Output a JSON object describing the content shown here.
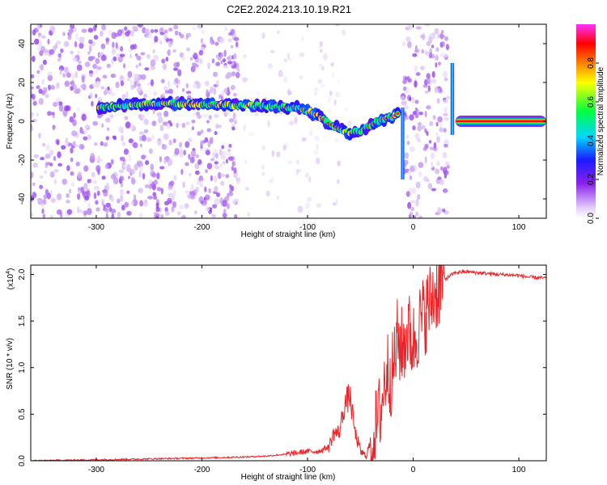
{
  "title": "C2E2.2024.213.10.19.R21",
  "colors": {
    "axis": "#000000",
    "snr_line": "#e8262a",
    "colormap": [
      "#ffffff",
      "#c8a0f0",
      "#7a10f0",
      "#1a1aff",
      "#00d8ff",
      "#00ff40",
      "#ffff00",
      "#ff8000",
      "#ff0000",
      "#ff20ff"
    ]
  },
  "chart_data": [
    {
      "type": "heatmap",
      "title": "C2E2.2024.213.10.19.R21",
      "xlabel": "Height of straight line (km)",
      "ylabel": "Frequency (Hz)",
      "xlim": [
        -362,
        126
      ],
      "ylim": [
        -50,
        50
      ],
      "xticks": [
        -300,
        -200,
        -100,
        0,
        100
      ],
      "yticks": [
        -40,
        -20,
        0,
        20,
        40
      ],
      "colorbar": {
        "label": "Normalized spectral amplitude",
        "range": [
          0.0,
          1.0
        ],
        "ticks": [
          0.0,
          0.2,
          0.4,
          0.6,
          0.8
        ]
      },
      "ridge": {
        "x": [
          -297,
          -280,
          -260,
          -250,
          -230,
          -210,
          -190,
          -170,
          -150,
          -130,
          -110,
          -100,
          -90,
          -80,
          -70,
          -60,
          -50,
          -40,
          -30,
          -20,
          -12
        ],
        "y": [
          7,
          8,
          8.5,
          9,
          9,
          9,
          8.5,
          8.5,
          8,
          7.5,
          7,
          5,
          3,
          -1,
          -4,
          -6,
          -5,
          -2,
          1,
          2,
          5
        ]
      },
      "occultation_top_line": {
        "x": [
          40,
          126
        ],
        "y": [
          0,
          0
        ],
        "amplitude": 1.0
      },
      "noise_regions": [
        {
          "x": [
            -362,
            -165
          ],
          "density": "high"
        },
        {
          "x": [
            -160,
            -60
          ],
          "density": "low"
        },
        {
          "x": [
            -10,
            33
          ],
          "density": "high"
        }
      ]
    },
    {
      "type": "line",
      "xlabel": "Height of straight line (km)",
      "ylabel": "SNR (10 * v/v)",
      "yscale_label": "(x10",
      "yscale_exp": "4",
      "yscale_close": ")",
      "xlim": [
        -362,
        126
      ],
      "ylim": [
        0.0,
        2.1
      ],
      "xticks": [
        -300,
        -200,
        -100,
        0,
        100
      ],
      "yticks": [
        "0.0",
        "0.5",
        "1.0",
        "1.5",
        "2.0"
      ],
      "series": [
        {
          "x": [
            -362,
            -300,
            -250,
            -200,
            -160,
            -140,
            -120,
            -100,
            -90,
            -80,
            -75,
            -70,
            -65,
            -60,
            -55,
            -50,
            -45,
            -40,
            -35,
            -30,
            -25,
            -20,
            -15,
            -10,
            -5,
            0,
            5,
            10,
            20,
            30,
            40,
            50,
            60,
            80,
            100,
            110,
            126
          ],
          "y": [
            0.0,
            0.01,
            0.02,
            0.03,
            0.04,
            0.05,
            0.07,
            0.1,
            0.1,
            0.15,
            0.3,
            0.3,
            0.6,
            0.7,
            0.3,
            0.1,
            0.05,
            0.2,
            0.35,
            0.6,
            1.0,
            0.9,
            1.3,
            1.2,
            1.4,
            1.25,
            1.45,
            1.55,
            1.8,
            1.95,
            2.02,
            2.03,
            2.02,
            2.0,
            1.99,
            1.97,
            1.96
          ]
        }
      ]
    }
  ]
}
